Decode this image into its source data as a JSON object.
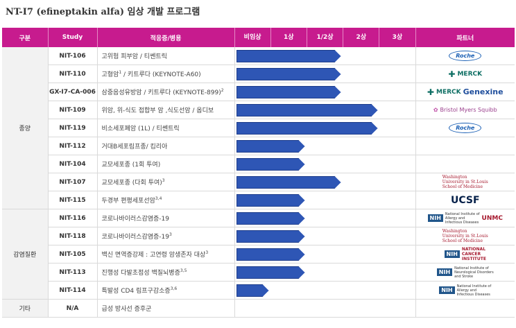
{
  "title": {
    "latin": "NT-I7 (efineptakin alfa)",
    "korean": " 임상 개발 프로그램"
  },
  "headers": {
    "category": "구분",
    "study": "Study",
    "indication": "적응증/병용",
    "stages": [
      "비임상",
      "1상",
      "1/2상",
      "2상",
      "3상"
    ],
    "partner": "파트너"
  },
  "categories": {
    "oncology": "종양",
    "infectious": "감염질환",
    "other": "기타"
  },
  "rows": [
    {
      "study": "NIT-106",
      "indication": "고위험 피부암 / 티쎈트릭",
      "sup": "",
      "progress": 0.58,
      "partner": "roche"
    },
    {
      "study": "NIT-110",
      "indication": "고형암",
      "sup": "1",
      "indication2": " / 키트루다 (KEYNOTE-A60)",
      "progress": 0.58,
      "partner": "merck"
    },
    {
      "study": "GX-I7-CA-006",
      "indication": "삼중음성유방암 / 키트루다 (KEYNOTE-899)",
      "sup": "2",
      "progress": 0.58,
      "partner": "merck-genexine"
    },
    {
      "study": "NIT-109",
      "indication": "위암, 위-식도 접합부 암 ,식도선암 / 옵디보",
      "sup": "",
      "progress": 0.78,
      "partner": "bms"
    },
    {
      "study": "NIT-119",
      "indication": "비소세포폐암 (1L) / 티쎈트릭",
      "sup": "",
      "progress": 0.78,
      "partner": "roche"
    },
    {
      "study": "NIT-112",
      "indication": "거대B세포림프종/ 킴리아",
      "sup": "",
      "progress": 0.38,
      "partner": ""
    },
    {
      "study": "NIT-104",
      "indication": "교모세포종 (1회 투여)",
      "sup": "",
      "progress": 0.38,
      "partner": ""
    },
    {
      "study": "NIT-107",
      "indication": "교모세포종 (다회 투여)",
      "sup": "3",
      "progress": 0.58,
      "partner": "washu"
    },
    {
      "study": "NIT-115",
      "indication": "두경부 편평세포선암",
      "sup": "3,4",
      "progress": 0.38,
      "partner": "ucsf"
    },
    {
      "study": "NIT-116",
      "indication": "코로나바이러스감염증-19",
      "sup": "",
      "progress": 0.38,
      "partner": "nih-unmc"
    },
    {
      "study": "NIT-118",
      "indication": "코로나바이러스감염증-19",
      "sup": "3",
      "progress": 0.38,
      "partner": "washu"
    },
    {
      "study": "NIT-105",
      "indication": "백신 면역증강제 : 고연령 암생존자 대상",
      "sup": "3",
      "progress": 0.38,
      "partner": "nih-nci"
    },
    {
      "study": "NIT-113",
      "indication": "진행성 다발초점성 백질뇌병증",
      "sup": "3,5",
      "progress": 0.38,
      "partner": "nih-ninds"
    },
    {
      "study": "NIT-114",
      "indication": "특발성 CD4 림프구감소증",
      "sup": "3,6",
      "progress": 0.18,
      "partner": "nih-niaid"
    },
    {
      "study": "N/A",
      "indication": "급성 방사선 증후군",
      "sup": "",
      "progress": 0,
      "partner": ""
    }
  ],
  "logos": {
    "roche": "Roche",
    "merck": "MERCK",
    "merck_genexine_a": "MERCK",
    "merck_genexine_b": "Genexine",
    "bms": "Bristol Myers Squibb",
    "washu_a": "Washington",
    "washu_b": "University in St.Louis",
    "washu_c": "School of Medicine",
    "ucsf": "UCSF",
    "nih": "NIH",
    "niaid_a": "National Institute of",
    "niaid_b": "Allergy and",
    "niaid_c": "Infectious Diseases",
    "unmc": "UNMC",
    "nci_a": "NATIONAL",
    "nci_b": "CANCER",
    "nci_c": "INSTITUTE",
    "ninds_a": "National Institute of",
    "ninds_b": "Neurological Disorders",
    "ninds_c": "and Stroke"
  },
  "colors": {
    "header": "#c71b8e",
    "bar": "#2e56b5"
  }
}
